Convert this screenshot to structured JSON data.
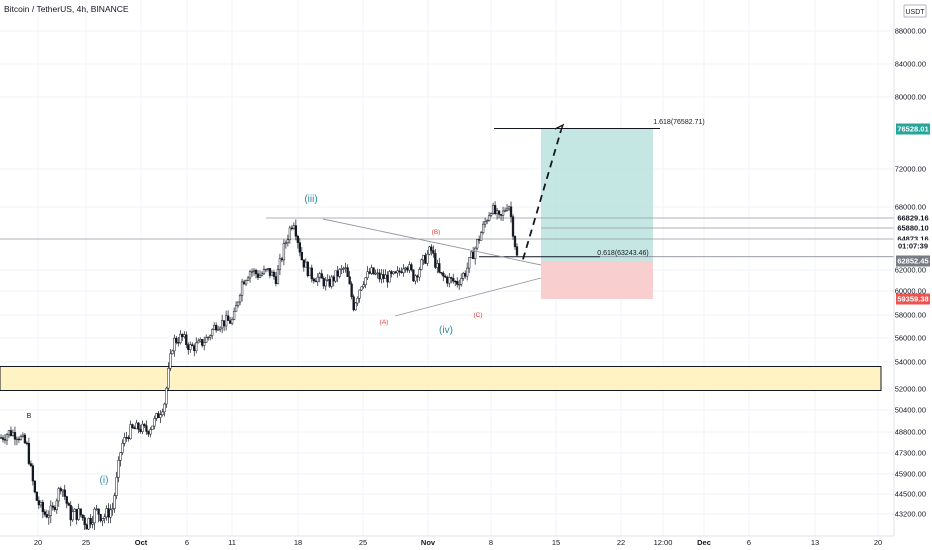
{
  "header": {
    "symbol_line": "Bitcoin / TetherUS, 4h, BINANCE"
  },
  "currency": {
    "pair_note": "USDT"
  },
  "y_axis": {
    "ticks": [
      {
        "label": "88000.00",
        "value": 88000
      },
      {
        "label": "84000.00",
        "value": 84000
      },
      {
        "label": "80000.00",
        "value": 80000
      },
      {
        "label": "72000.00",
        "value": 72000
      },
      {
        "label": "68000.00",
        "value": 68000
      },
      {
        "label": "62000.00",
        "value": 62000
      },
      {
        "label": "60000.00",
        "value": 60000
      },
      {
        "label": "58000.00",
        "value": 58000
      },
      {
        "label": "56000.00",
        "value": 56000
      },
      {
        "label": "54000.00",
        "value": 54000
      },
      {
        "label": "52000.00",
        "value": 52000
      },
      {
        "label": "50400.00",
        "value": 50400
      },
      {
        "label": "48800.00",
        "value": 48800
      },
      {
        "label": "47300.00",
        "value": 47300
      },
      {
        "label": "45900.00",
        "value": 45900
      },
      {
        "label": "44500.00",
        "value": 44500
      },
      {
        "label": "43200.00",
        "value": 43200
      }
    ],
    "tags": [
      {
        "label": "76528.01",
        "value": 76528.01,
        "color": "#26a69a",
        "text_color": "#ffffff"
      },
      {
        "label": "66829.16",
        "value": 66829.16,
        "color": "#ffffff",
        "text_color": "#131722"
      },
      {
        "label": "65880.10",
        "value": 65880.1,
        "color": "#ffffff",
        "text_color": "#131722"
      },
      {
        "label": "64873.16",
        "value": 64873.16,
        "color": "#ffffff",
        "text_color": "#131722"
      },
      {
        "label": "01:07:39",
        "value": 64250,
        "color": "#ffffff",
        "text_color": "#131722"
      },
      {
        "label": "62852.45",
        "value": 62852.45,
        "color": "#787b86",
        "text_color": "#ffffff"
      },
      {
        "label": "59359.38",
        "value": 59359.38,
        "color": "#ef5350",
        "text_color": "#ffffff"
      }
    ]
  },
  "x_axis": {
    "ticks": [
      {
        "label": "20",
        "bold": false
      },
      {
        "label": "25",
        "bold": false
      },
      {
        "label": "Oct",
        "bold": true
      },
      {
        "label": "6",
        "bold": false
      },
      {
        "label": "11",
        "bold": false
      },
      {
        "label": "18",
        "bold": false
      },
      {
        "label": "25",
        "bold": false
      },
      {
        "label": "Nov",
        "bold": true
      },
      {
        "label": "8",
        "bold": false
      },
      {
        "label": "15",
        "bold": false
      },
      {
        "label": "22",
        "bold": false
      },
      {
        "label": "12:00",
        "bold": false
      },
      {
        "label": "Dec",
        "bold": true
      },
      {
        "label": "6",
        "bold": false
      },
      {
        "label": "13",
        "bold": false
      },
      {
        "label": "20",
        "bold": false
      }
    ]
  },
  "annotations": {
    "fib_1618": "1.618(76582.71)",
    "fib_0618": "0.618(63243.46)",
    "wave_i": "(i)",
    "wave_iii": "(iii)",
    "wave_iv": "(iv)",
    "wave_A": "(A)",
    "wave_B": "(B)",
    "wave_C": "(C)",
    "wave_b": "B"
  },
  "colors": {
    "candle": "#131722",
    "wave_blue": "#2a8a9f",
    "wave_red": "#e53935",
    "target_zone": "#b2dfdb",
    "stop_zone": "#f8c6c5",
    "support_zone": "#fff3c4",
    "line": "#787b86",
    "grid": "#f0f3fa"
  },
  "chart_data": {
    "type": "candlestick",
    "title": "Bitcoin / TetherUS, 4h, BINANCE",
    "ylabel": "USDT",
    "ylim": [
      42500,
      92000
    ],
    "support_zone": [
      51100,
      53000
    ],
    "position": {
      "entry": 62852.45,
      "target": 76528.01,
      "stop": 59359.38
    },
    "fib_levels": [
      {
        "ratio": "1.618",
        "price": 76582.71
      },
      {
        "ratio": "0.618",
        "price": 63243.46
      }
    ],
    "horizontal_levels": [
      66829.16,
      65880.1,
      64873.16
    ],
    "price_path": [
      [
        48400,
        "Sep 17"
      ],
      [
        48800,
        "Sep 18"
      ],
      [
        48600,
        "Sep 19"
      ],
      [
        47800,
        "Sep 20"
      ],
      [
        44300,
        "Sep 21"
      ],
      [
        43200,
        "Sep 22"
      ],
      [
        43400,
        "Sep 23"
      ],
      [
        45200,
        "Sep 24"
      ],
      [
        43200,
        "Sep 25"
      ],
      [
        43300,
        "Sep 26"
      ],
      [
        42800,
        "Sep 27"
      ],
      [
        43400,
        "Sep 28"
      ],
      [
        43100,
        "Sep 29"
      ],
      [
        43600,
        "Sep 30"
      ],
      [
        47800,
        "Oct 1"
      ],
      [
        48900,
        "Oct 2"
      ],
      [
        49100,
        "Oct 3"
      ],
      [
        48900,
        "Oct 4"
      ],
      [
        49700,
        "Oct 5"
      ],
      [
        51000,
        "Oct 6"
      ],
      [
        55700,
        "Oct 7"
      ],
      [
        56100,
        "Oct 8"
      ],
      [
        55200,
        "Oct 9"
      ],
      [
        55400,
        "Oct 10"
      ],
      [
        56000,
        "Oct 11"
      ],
      [
        57200,
        "Oct 12"
      ],
      [
        57400,
        "Oct 13"
      ],
      [
        57500,
        "Oct 14"
      ],
      [
        60800,
        "Oct 15"
      ],
      [
        62000,
        "Oct 16"
      ],
      [
        61500,
        "Oct 17"
      ],
      [
        61900,
        "Oct 18"
      ],
      [
        61200,
        "Oct 19"
      ],
      [
        64300,
        "Oct 20"
      ],
      [
        66800,
        "Oct 21"
      ],
      [
        63000,
        "Oct 22"
      ],
      [
        61500,
        "Oct 23"
      ],
      [
        61200,
        "Oct 24"
      ],
      [
        60600,
        "Oct 25"
      ],
      [
        61500,
        "Oct 26"
      ],
      [
        62200,
        "Oct 27"
      ],
      [
        58800,
        "Oct 28"
      ],
      [
        60900,
        "Oct 29"
      ],
      [
        61800,
        "Oct 30"
      ],
      [
        61300,
        "Oct 31"
      ],
      [
        61300,
        "Nov 1"
      ],
      [
        61400,
        "Nov 2"
      ],
      [
        62800,
        "Nov 3"
      ],
      [
        61300,
        "Nov 4"
      ],
      [
        62700,
        "Nov 5"
      ],
      [
        63900,
        "Nov 6"
      ],
      [
        61500,
        "Nov 7"
      ],
      [
        61100,
        "Nov 8"
      ],
      [
        60800,
        "Nov 9"
      ],
      [
        61800,
        "Nov 10"
      ],
      [
        63800,
        "Nov 11"
      ],
      [
        65800,
        "Nov 12"
      ],
      [
        67900,
        "Nov 13"
      ],
      [
        66600,
        "Nov 14"
      ],
      [
        68600,
        "Nov 15"
      ],
      [
        63200,
        "Nov 16"
      ]
    ],
    "projection": [
      [
        63000,
        "Nov 16"
      ],
      [
        76582.71,
        "Nov 24"
      ]
    ]
  }
}
